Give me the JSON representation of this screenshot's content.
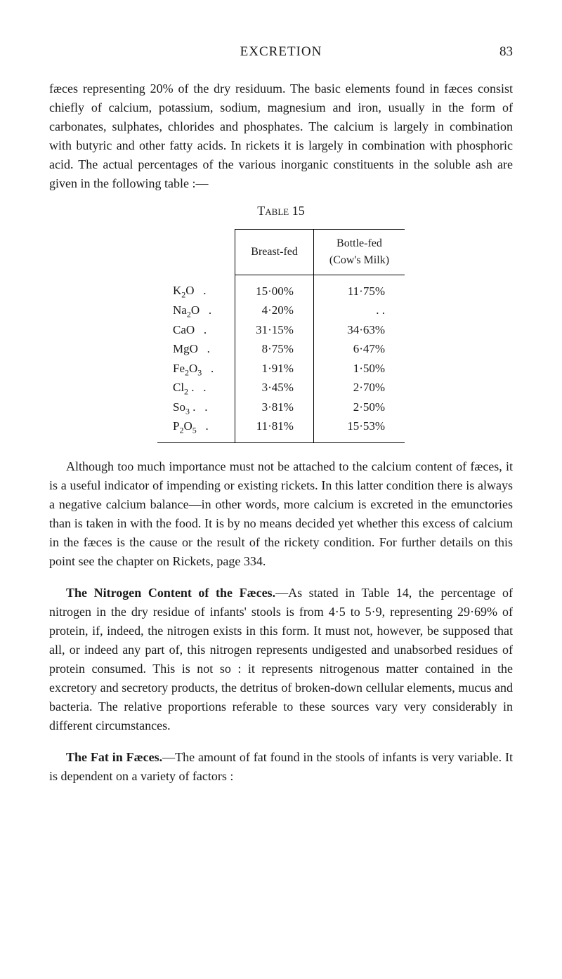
{
  "header": {
    "title": "EXCRETION",
    "page_number": "83"
  },
  "paragraphs": {
    "p1": "fæces representing 20% of the dry residuum. The basic elements found in fæces consist chiefly of calcium, potassium, sodium, magnesium and iron, usually in the form of carbonates, sulphates, chlorides and phosphates. The calcium is largely in combination with butyric and other fatty acids. In rickets it is largely in combination with phosphoric acid. The actual percentages of the various inorganic constituents in the soluble ash are given in the following table :—",
    "p2": "Although too much importance must not be attached to the calcium content of fæces, it is a useful indicator of impending or existing rickets. In this latter condition there is always a negative calcium balance—in other words, more calcium is excreted in the emunctories than is taken in with the food. It is by no means decided yet whether this excess of calcium in the fæces is the cause or the result of the rickety condition. For further details on this point see the chapter on Rickets, page 334.",
    "p3_heading": "The Nitrogen Content of the Fæces.",
    "p3": "—As stated in Table 14, the percentage of nitrogen in the dry residue of infants' stools is from 4·5 to 5·9, representing 29·69% of protein, if, indeed, the nitrogen exists in this form. It must not, however, be supposed that all, or indeed any part of, this nitrogen represents undigested and unabsorbed residues of protein consumed. This is not so : it represents nitrogenous matter contained in the excretory and secretory products, the detritus of broken-down cellular elements, mucus and bacteria. The relative proportions referable to these sources vary very considerably in different circumstances.",
    "p4_heading": "The Fat in Fæces.",
    "p4": "—The amount of fat found in the stools of infants is very variable. It is dependent on a variety of factors :"
  },
  "table": {
    "caption": "Table 15",
    "column_headers": {
      "breast": "Breast-fed",
      "bottle": "Bottle-fed\n(Cow's Milk)"
    },
    "rows": [
      {
        "label_html": "K<sub>2</sub>O",
        "breast": "15·00%",
        "bottle": "11·75%"
      },
      {
        "label_html": "Na<sub>2</sub>O",
        "breast": "4·20%",
        "bottle": ". ."
      },
      {
        "label_html": "CaO",
        "breast": "31·15%",
        "bottle": "34·63%"
      },
      {
        "label_html": "MgO",
        "breast": "8·75%",
        "bottle": "6·47%"
      },
      {
        "label_html": "Fe<sub>2</sub>O<sub>3</sub>",
        "breast": "1·91%",
        "bottle": "1·50%"
      },
      {
        "label_html": "Cl<sub>2</sub> .",
        "breast": "3·45%",
        "bottle": "2·70%"
      },
      {
        "label_html": "So<sub>3</sub> .",
        "breast": "3·81%",
        "bottle": "2·50%"
      },
      {
        "label_html": "P<sub>2</sub>O<sub>5</sub>",
        "breast": "11·81%",
        "bottle": "15·53%"
      }
    ]
  }
}
